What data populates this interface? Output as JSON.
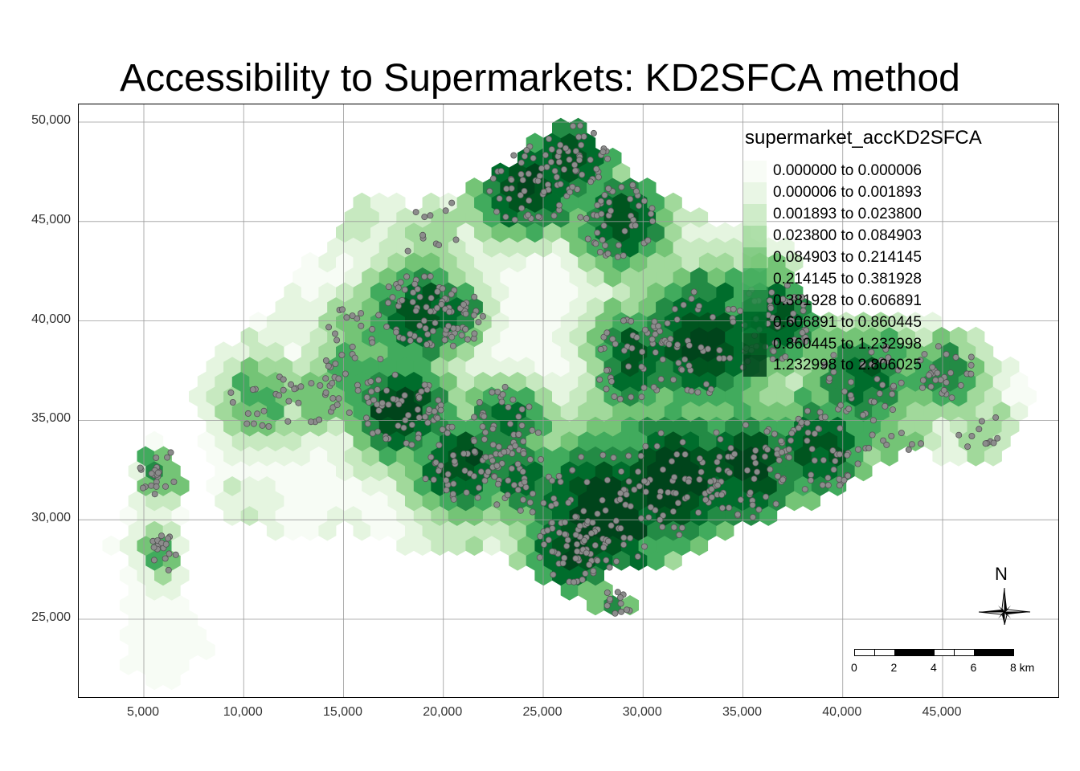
{
  "title": "Accessibility to Supermarkets: KD2SFCA method",
  "legend": {
    "title": "supermarket_accKD2SFCA",
    "classes": [
      {
        "label": "0.000000 to 0.000006",
        "color": "#f7fcf5"
      },
      {
        "label": "0.000006 to 0.001893",
        "color": "#e5f5e0"
      },
      {
        "label": "0.001893 to 0.023800",
        "color": "#c7e9c0"
      },
      {
        "label": "0.023800 to 0.084903",
        "color": "#a1d99b"
      },
      {
        "label": "0.084903 to 0.214145",
        "color": "#74c476"
      },
      {
        "label": "0.214145 to 0.381928",
        "color": "#41ab5d"
      },
      {
        "label": "0.381928 to 0.606891",
        "color": "#238b45"
      },
      {
        "label": "0.606891 to 0.860445",
        "color": "#006d2c"
      },
      {
        "label": "0.860445 to 1.232998",
        "color": "#00551f"
      },
      {
        "label": "1.232998 to 2.806025",
        "color": "#00441b"
      }
    ]
  },
  "axes": {
    "x_ticks": [
      "5,000",
      "10,000",
      "15,000",
      "20,000",
      "25,000",
      "30,000",
      "35,000",
      "40,000",
      "45,000"
    ],
    "x_values": [
      5000,
      10000,
      15000,
      20000,
      25000,
      30000,
      35000,
      40000,
      45000
    ],
    "y_ticks": [
      "25,000",
      "30,000",
      "35,000",
      "40,000",
      "45,000",
      "50,000"
    ],
    "y_values": [
      25000,
      30000,
      35000,
      40000,
      45000,
      50000
    ],
    "x_range": [
      2000,
      51000
    ],
    "y_range": [
      21000,
      50900
    ],
    "grid": true
  },
  "scale_bar": {
    "labels": [
      "0",
      "2",
      "4",
      "6",
      "8 km"
    ]
  },
  "north_arrow": {
    "label": "N",
    "icon": "north-arrow-icon"
  },
  "point_color": "#8c8c8c",
  "hotspots": [
    {
      "x": 24200,
      "y": 46800,
      "r": 3000,
      "level": 9.5
    },
    {
      "x": 26500,
      "y": 48200,
      "r": 2500,
      "level": 9
    },
    {
      "x": 28800,
      "y": 45000,
      "r": 2800,
      "level": 9
    },
    {
      "x": 18700,
      "y": 40400,
      "r": 2800,
      "level": 9
    },
    {
      "x": 20500,
      "y": 40200,
      "r": 2200,
      "level": 8.5
    },
    {
      "x": 18000,
      "y": 35500,
      "r": 2800,
      "level": 9.5
    },
    {
      "x": 20800,
      "y": 32800,
      "r": 2800,
      "level": 9
    },
    {
      "x": 23200,
      "y": 35000,
      "r": 2500,
      "level": 8
    },
    {
      "x": 23800,
      "y": 32000,
      "r": 2500,
      "level": 8
    },
    {
      "x": 28000,
      "y": 30500,
      "r": 4200,
      "level": 10
    },
    {
      "x": 31500,
      "y": 32000,
      "r": 4000,
      "level": 10
    },
    {
      "x": 26500,
      "y": 28500,
      "r": 2600,
      "level": 9.5
    },
    {
      "x": 35000,
      "y": 32500,
      "r": 3500,
      "level": 9.5
    },
    {
      "x": 38800,
      "y": 33500,
      "r": 3000,
      "level": 9
    },
    {
      "x": 29500,
      "y": 38000,
      "r": 3000,
      "level": 8.5
    },
    {
      "x": 33000,
      "y": 39000,
      "r": 3800,
      "level": 9.5
    },
    {
      "x": 36500,
      "y": 40000,
      "r": 2800,
      "level": 8.5
    },
    {
      "x": 41000,
      "y": 37000,
      "r": 3000,
      "level": 8
    },
    {
      "x": 45200,
      "y": 37300,
      "r": 2200,
      "level": 7
    },
    {
      "x": 15500,
      "y": 37000,
      "r": 2500,
      "level": 6
    },
    {
      "x": 11000,
      "y": 36000,
      "r": 2500,
      "level": 5.5
    },
    {
      "x": 13500,
      "y": 36000,
      "r": 2000,
      "level": 5
    },
    {
      "x": 15500,
      "y": 39500,
      "r": 2000,
      "level": 5
    },
    {
      "x": 5500,
      "y": 32500,
      "r": 1800,
      "level": 6
    },
    {
      "x": 5800,
      "y": 28300,
      "r": 1500,
      "level": 5.5
    },
    {
      "x": 28500,
      "y": 25700,
      "r": 1400,
      "level": 6
    },
    {
      "x": 47000,
      "y": 34300,
      "r": 1800,
      "level": 4
    },
    {
      "x": 19500,
      "y": 44500,
      "r": 2500,
      "level": 4
    },
    {
      "x": 15000,
      "y": 45500,
      "r": 2500,
      "level": 3
    },
    {
      "x": 10000,
      "y": 40000,
      "r": 4000,
      "level": 2
    },
    {
      "x": 6000,
      "y": 36500,
      "r": 3500,
      "level": 1.5
    },
    {
      "x": 10500,
      "y": 30500,
      "r": 4000,
      "level": 1.2
    },
    {
      "x": 15000,
      "y": 29000,
      "r": 4500,
      "level": 1.1
    },
    {
      "x": 5000,
      "y": 24500,
      "r": 3000,
      "level": 0.6
    },
    {
      "x": 21000,
      "y": 30000,
      "r": 3000,
      "level": 3
    },
    {
      "x": 42500,
      "y": 33500,
      "r": 2500,
      "level": 5
    }
  ],
  "cold_spots": [
    {
      "x": 24800,
      "y": 41500,
      "r": 2600
    },
    {
      "x": 23500,
      "y": 38800,
      "r": 1800
    },
    {
      "x": 26500,
      "y": 37500,
      "r": 1200
    }
  ]
}
